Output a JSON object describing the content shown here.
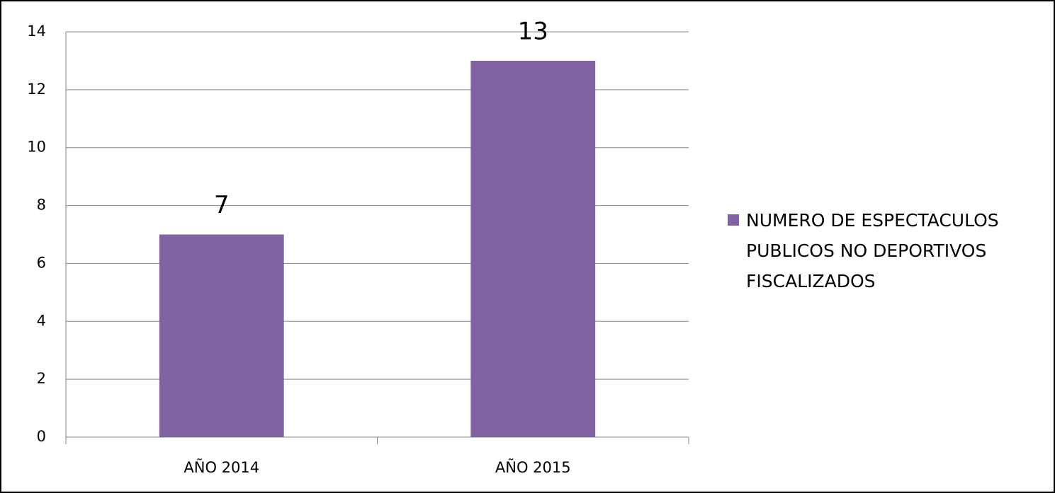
{
  "chart_data": {
    "type": "bar",
    "categories": [
      "AÑO 2014",
      "AÑO 2015"
    ],
    "series": [
      {
        "name": "NUMERO DE ESPECTACULOS PUBLICOS NO DEPORTIVOS FISCALIZADOS",
        "color": "#8064a2",
        "values": [
          7,
          13
        ]
      }
    ],
    "ylim": [
      0,
      14
    ],
    "yticks": [
      0,
      2,
      4,
      6,
      8,
      10,
      12,
      14
    ],
    "grid": true,
    "legend": "right",
    "data_labels": true
  }
}
